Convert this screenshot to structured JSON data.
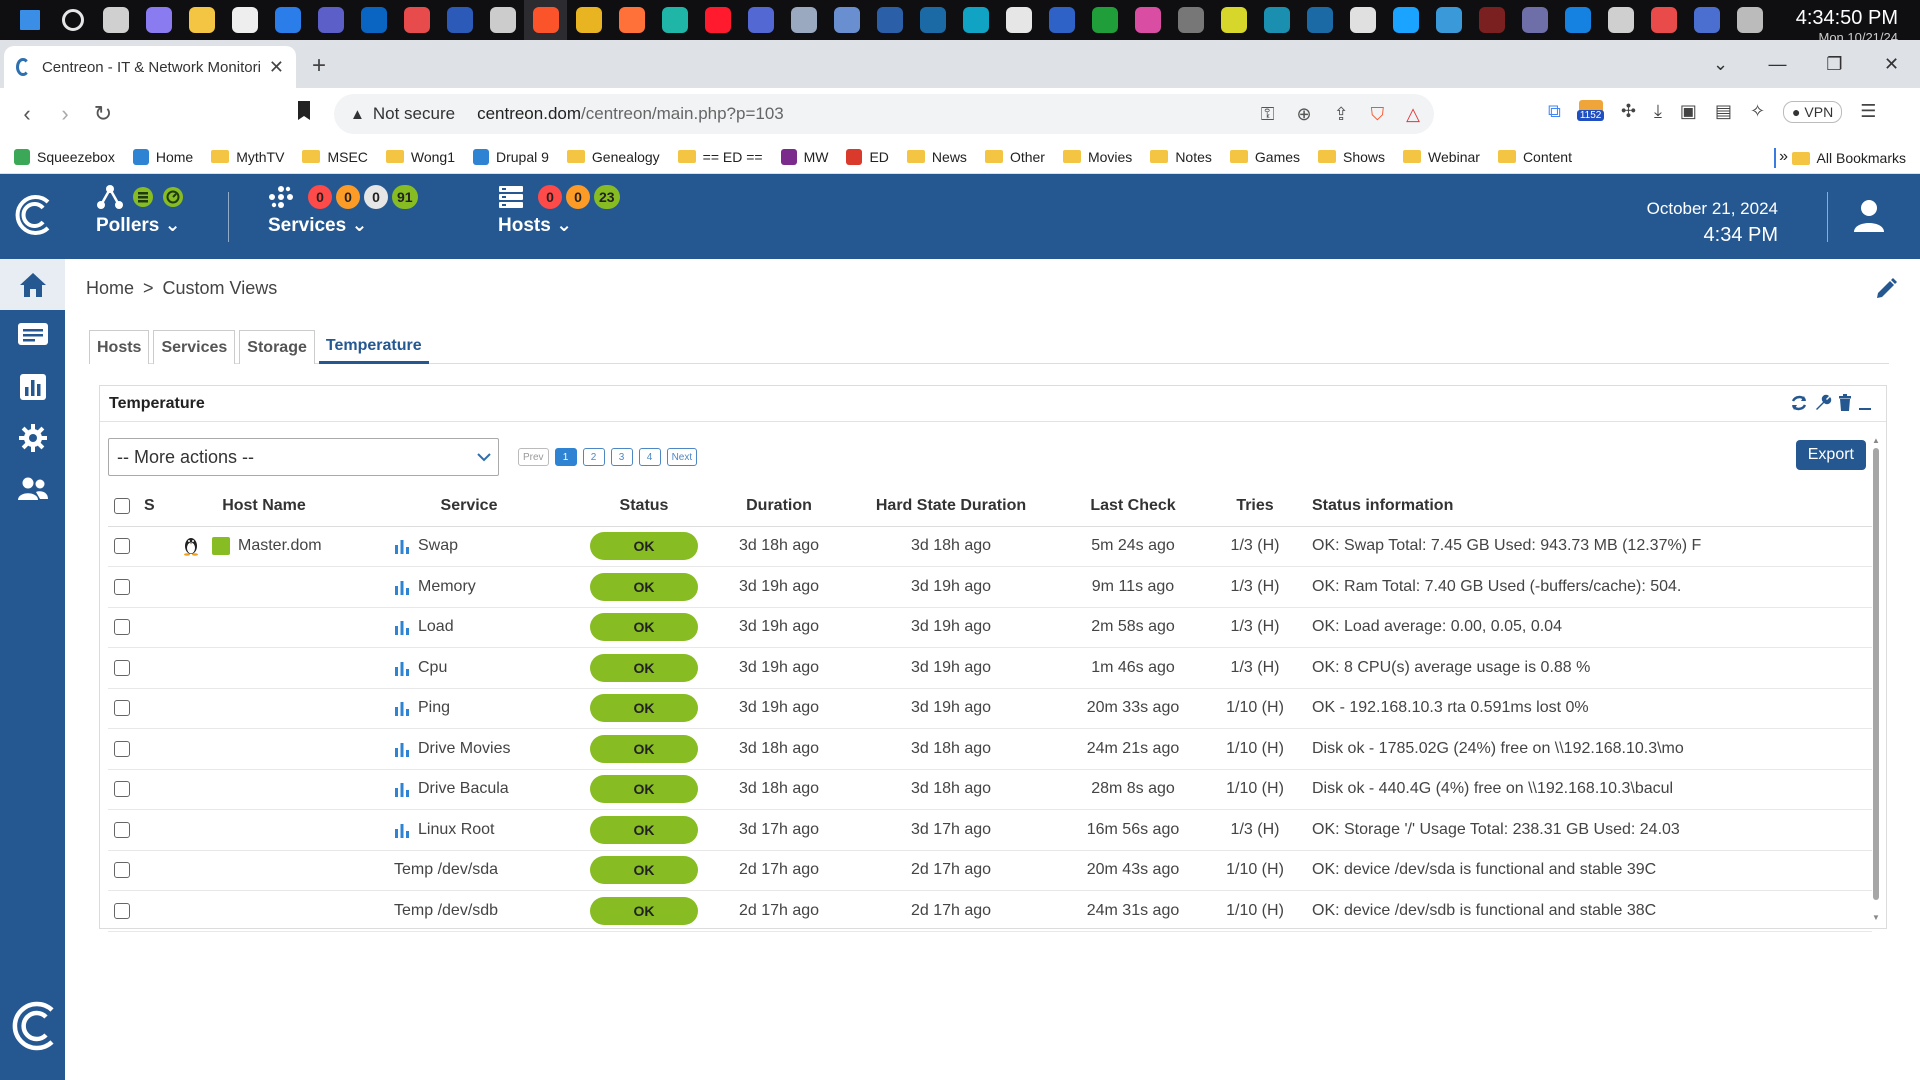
{
  "taskbar": {
    "time": "4:34:50 PM",
    "date": "Mon 10/21/24",
    "icons": [
      {
        "name": "windows-start-icon",
        "color": "#3a8ee6"
      },
      {
        "name": "search-icon",
        "color": "#e6e6e6"
      },
      {
        "name": "task-view-icon",
        "color": "#d0d0d0"
      },
      {
        "name": "copilot-icon",
        "color": "#8a7bf0"
      },
      {
        "name": "file-explorer-icon",
        "color": "#f4c542"
      },
      {
        "name": "network-app-icon",
        "color": "#eeeeee"
      },
      {
        "name": "thunderbird-icon",
        "color": "#2b7de9"
      },
      {
        "name": "teams-icon",
        "color": "#5b5fc7"
      },
      {
        "name": "outlook-icon",
        "color": "#0a64c2"
      },
      {
        "name": "app-red-icon",
        "color": "#e74b4b"
      },
      {
        "name": "word-icon",
        "color": "#2b5ab8"
      },
      {
        "name": "terminal-icon",
        "color": "#cccccc"
      },
      {
        "name": "brave-browser-icon",
        "color": "#fb542b"
      },
      {
        "name": "chrome-icon",
        "color": "#e8b422"
      },
      {
        "name": "firefox-icon",
        "color": "#ff7139"
      },
      {
        "name": "edge-icon",
        "color": "#1fb6a8"
      },
      {
        "name": "opera-icon",
        "color": "#ff1b2d"
      },
      {
        "name": "app-blue-icon",
        "color": "#5468d4"
      },
      {
        "name": "monitor-icon",
        "color": "#9aa9c0"
      },
      {
        "name": "remote-desktop-icon",
        "color": "#6a8fd0"
      },
      {
        "name": "powershell-icon",
        "color": "#2b5fa8"
      },
      {
        "name": "steam-icon",
        "color": "#1b6aa5"
      },
      {
        "name": "app-cyan-icon",
        "color": "#10a3c4"
      },
      {
        "name": "vmware-icon",
        "color": "#e6e6e6"
      },
      {
        "name": "app-shield-icon",
        "color": "#2f62c6"
      },
      {
        "name": "hd-app-icon",
        "color": "#1f9e3a"
      },
      {
        "name": "app-pink-icon",
        "color": "#d94ea3"
      },
      {
        "name": "app-circle-icon",
        "color": "#777777"
      },
      {
        "name": "app-yellow-icon",
        "color": "#d6d62b"
      },
      {
        "name": "app-teal-icon",
        "color": "#1a8fb0"
      },
      {
        "name": "steam2-icon",
        "color": "#1b6aa5"
      },
      {
        "name": "settings-icon",
        "color": "#e0e0e0"
      },
      {
        "name": "cortana-ring-icon",
        "color": "#1aa3ff"
      },
      {
        "name": "app-gear2-icon",
        "color": "#3a9ad9"
      },
      {
        "name": "app-dark-icon",
        "color": "#7a2020"
      },
      {
        "name": "app-bar-icon",
        "color": "#6e6ea8"
      },
      {
        "name": "app-blue2-icon",
        "color": "#1581e0"
      },
      {
        "name": "app-x-icon",
        "color": "#cfcfcf"
      },
      {
        "name": "app-c-icon",
        "color": "#e94a4a"
      },
      {
        "name": "app-desk-icon",
        "color": "#4a6fd0"
      },
      {
        "name": "app-tray-icon",
        "color": "#bbbbbb"
      }
    ]
  },
  "browser": {
    "tab_title": "Centreon - IT & Network Monitori",
    "new_tab_symbol": "+",
    "not_secure": "Not secure",
    "url_host": "centreon.dom",
    "url_path": "/centreon/main.php?p=103",
    "ext_badge": "1152",
    "vpn_label": "VPN"
  },
  "bookmarks": {
    "items": [
      {
        "label": "Squeezebox",
        "type": "site",
        "color": "#3aa857"
      },
      {
        "label": "Home",
        "type": "site",
        "color": "#2e84d3"
      },
      {
        "label": "MythTV",
        "type": "folder"
      },
      {
        "label": "MSEC",
        "type": "folder"
      },
      {
        "label": "Wong1",
        "type": "folder"
      },
      {
        "label": "Drupal 9",
        "type": "site",
        "color": "#2e84d3"
      },
      {
        "label": "Genealogy",
        "type": "folder"
      },
      {
        "label": "== ED ==",
        "type": "folder"
      },
      {
        "label": "MW",
        "type": "site",
        "color": "#7a2b8c"
      },
      {
        "label": "ED",
        "type": "site",
        "color": "#d93a2b"
      },
      {
        "label": "News",
        "type": "folder"
      },
      {
        "label": "Other",
        "type": "folder"
      },
      {
        "label": "Movies",
        "type": "folder"
      },
      {
        "label": "Notes",
        "type": "folder"
      },
      {
        "label": "Games",
        "type": "folder"
      },
      {
        "label": "Shows",
        "type": "folder"
      },
      {
        "label": "Webinar",
        "type": "folder"
      },
      {
        "label": "Content",
        "type": "folder"
      }
    ],
    "more": "»",
    "all": "All Bookmarks"
  },
  "header": {
    "pollers_label": "Pollers",
    "services_label": "Services",
    "services_counts": {
      "critical": "0",
      "warning": "0",
      "unknown": "0",
      "ok": "91"
    },
    "hosts_label": "Hosts",
    "hosts_counts": {
      "down": "0",
      "unreachable": "0",
      "up": "23"
    },
    "date": "October 21, 2024",
    "time": "4:34 PM"
  },
  "breadcrumb": {
    "home": "Home",
    "separator": ">",
    "current": "Custom Views"
  },
  "views_tabs": [
    {
      "label": "Hosts",
      "active": false
    },
    {
      "label": "Services",
      "active": false
    },
    {
      "label": "Storage",
      "active": false
    },
    {
      "label": "Temperature",
      "active": true
    }
  ],
  "widget": {
    "title": "Temperature",
    "actions_placeholder": "-- More actions --",
    "pager": {
      "prev": "Prev",
      "pages": [
        "1",
        "2",
        "3",
        "4"
      ],
      "current": "1",
      "next": "Next"
    },
    "export_label": "Export",
    "columns": [
      "S",
      "Host Name",
      "Service",
      "Status",
      "Duration",
      "Hard State Duration",
      "Last Check",
      "Tries",
      "Status information"
    ],
    "rows": [
      {
        "host": "Master.dom",
        "service": "Swap",
        "graph": true,
        "status": "OK",
        "duration": "3d 18h ago",
        "hard": "3d 18h ago",
        "last": "5m 24s ago",
        "tries": "1/3 (H)",
        "info": "OK: Swap Total: 7.45 GB Used: 943.73 MB (12.37%) F"
      },
      {
        "host": "",
        "service": "Memory",
        "graph": true,
        "status": "OK",
        "duration": "3d 19h ago",
        "hard": "3d 19h ago",
        "last": "9m 11s ago",
        "tries": "1/3 (H)",
        "info": "OK: Ram Total: 7.40 GB Used (-buffers/cache): 504."
      },
      {
        "host": "",
        "service": "Load",
        "graph": true,
        "status": "OK",
        "duration": "3d 19h ago",
        "hard": "3d 19h ago",
        "last": "2m 58s ago",
        "tries": "1/3 (H)",
        "info": "OK: Load average: 0.00, 0.05, 0.04"
      },
      {
        "host": "",
        "service": "Cpu",
        "graph": true,
        "status": "OK",
        "duration": "3d 19h ago",
        "hard": "3d 19h ago",
        "last": "1m 46s ago",
        "tries": "1/3 (H)",
        "info": "OK: 8 CPU(s) average usage is 0.88 %"
      },
      {
        "host": "",
        "service": "Ping",
        "graph": true,
        "status": "OK",
        "duration": "3d 19h ago",
        "hard": "3d 19h ago",
        "last": "20m 33s ago",
        "tries": "1/10 (H)",
        "info": "OK - 192.168.10.3 rta 0.591ms lost 0%"
      },
      {
        "host": "",
        "service": "Drive Movies",
        "graph": true,
        "status": "OK",
        "duration": "3d 18h ago",
        "hard": "3d 18h ago",
        "last": "24m 21s ago",
        "tries": "1/10 (H)",
        "info": "Disk ok - 1785.02G (24%) free on \\\\192.168.10.3\\mo"
      },
      {
        "host": "",
        "service": "Drive Bacula",
        "graph": true,
        "status": "OK",
        "duration": "3d 18h ago",
        "hard": "3d 18h ago",
        "last": "28m 8s ago",
        "tries": "1/10 (H)",
        "info": "Disk ok - 440.4G (4%) free on \\\\192.168.10.3\\bacul"
      },
      {
        "host": "",
        "service": "Linux Root",
        "graph": true,
        "status": "OK",
        "duration": "3d 17h ago",
        "hard": "3d 17h ago",
        "last": "16m 56s ago",
        "tries": "1/3 (H)",
        "info": "OK: Storage '/' Usage Total: 238.31 GB Used: 24.03"
      },
      {
        "host": "",
        "service": "Temp /dev/sda",
        "graph": false,
        "status": "OK",
        "duration": "2d 17h ago",
        "hard": "2d 17h ago",
        "last": "20m 43s ago",
        "tries": "1/10 (H)",
        "info": "OK: device /dev/sda is functional and stable 39C"
      },
      {
        "host": "",
        "service": "Temp /dev/sdb",
        "graph": false,
        "status": "OK",
        "duration": "2d 17h ago",
        "hard": "2d 17h ago",
        "last": "24m 31s ago",
        "tries": "1/10 (H)",
        "info": "OK: device /dev/sdb is functional and stable 38C"
      }
    ]
  },
  "colors": {
    "brand": "#255891",
    "ok": "#87bd23",
    "critical": "#ff4a4a",
    "warning": "#fd9b27",
    "unknown": "#e6e6e6"
  }
}
